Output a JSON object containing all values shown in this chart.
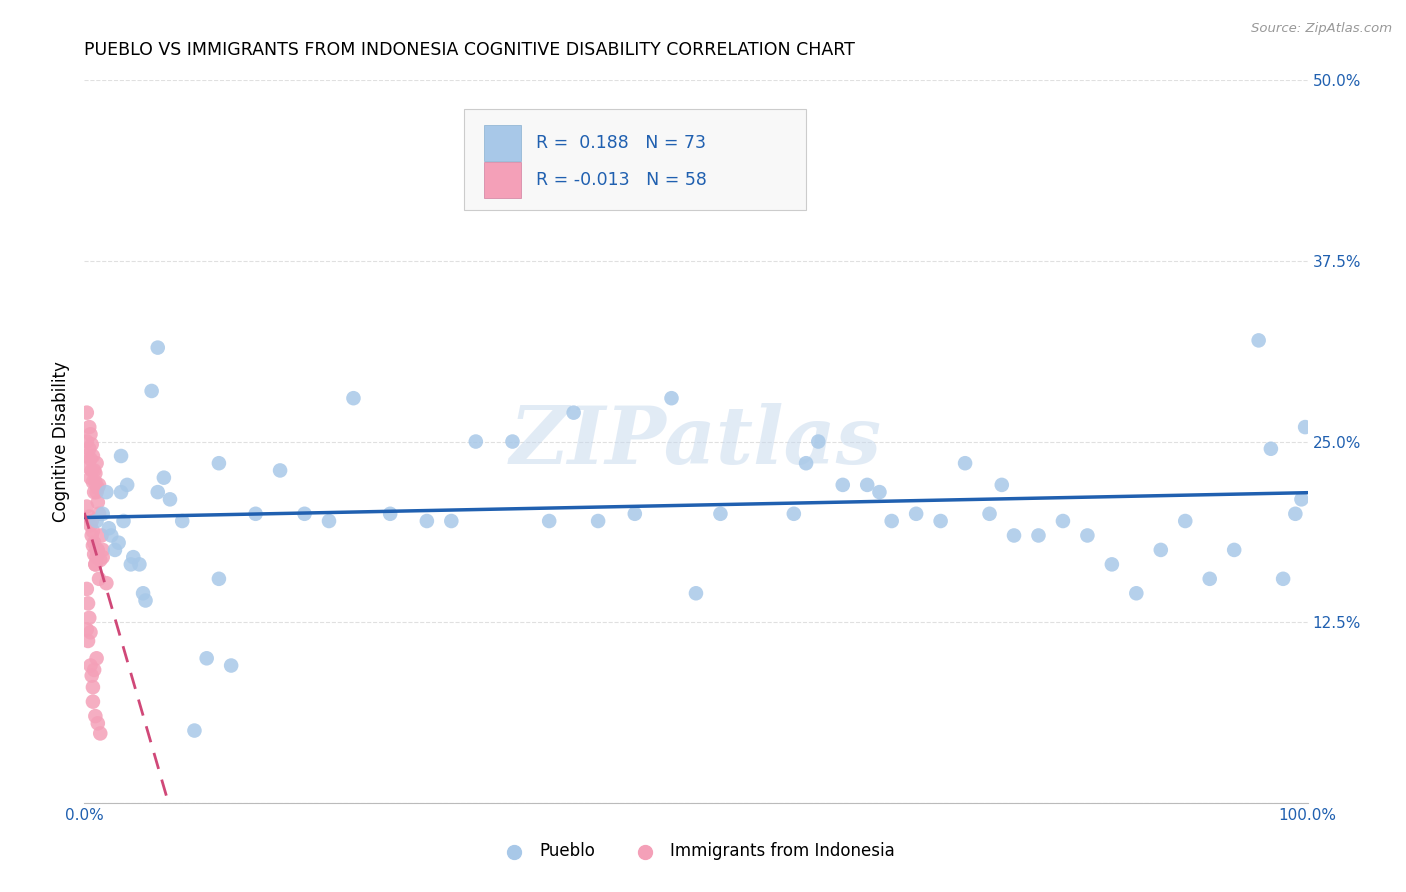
{
  "title": "PUEBLO VS IMMIGRANTS FROM INDONESIA COGNITIVE DISABILITY CORRELATION CHART",
  "source": "Source: ZipAtlas.com",
  "ylabel": "Cognitive Disability",
  "xlim": [
    0,
    1.0
  ],
  "ylim": [
    0,
    0.5
  ],
  "yticks": [
    0.0,
    0.125,
    0.25,
    0.375,
    0.5
  ],
  "ytick_labels": [
    "",
    "12.5%",
    "25.0%",
    "37.5%",
    "50.0%"
  ],
  "xticks": [
    0.0,
    0.1,
    0.2,
    0.3,
    0.4,
    0.5,
    0.6,
    0.7,
    0.8,
    0.9,
    1.0
  ],
  "xtick_labels": [
    "0.0%",
    "",
    "",
    "",
    "",
    "",
    "",
    "",
    "",
    "",
    "100.0%"
  ],
  "pueblo_R": 0.188,
  "pueblo_N": 73,
  "indonesia_R": -0.013,
  "indonesia_N": 58,
  "pueblo_color": "#a8c8e8",
  "indonesia_color": "#f4a0b8",
  "pueblo_line_color": "#2060b0",
  "indonesia_line_color": "#d04878",
  "pueblo_x": [
    0.01,
    0.015,
    0.018,
    0.02,
    0.022,
    0.025,
    0.028,
    0.03,
    0.032,
    0.035,
    0.038,
    0.04,
    0.045,
    0.048,
    0.05,
    0.055,
    0.06,
    0.065,
    0.07,
    0.08,
    0.09,
    0.1,
    0.11,
    0.12,
    0.14,
    0.16,
    0.18,
    0.2,
    0.22,
    0.25,
    0.28,
    0.3,
    0.32,
    0.35,
    0.38,
    0.4,
    0.42,
    0.45,
    0.48,
    0.5,
    0.52,
    0.55,
    0.58,
    0.6,
    0.62,
    0.64,
    0.65,
    0.66,
    0.68,
    0.7,
    0.72,
    0.74,
    0.75,
    0.76,
    0.78,
    0.8,
    0.82,
    0.84,
    0.86,
    0.88,
    0.9,
    0.92,
    0.94,
    0.96,
    0.97,
    0.98,
    0.99,
    0.995,
    0.998,
    0.03,
    0.06,
    0.11,
    0.59
  ],
  "pueblo_y": [
    0.195,
    0.2,
    0.215,
    0.19,
    0.185,
    0.175,
    0.18,
    0.215,
    0.195,
    0.22,
    0.165,
    0.17,
    0.165,
    0.145,
    0.14,
    0.285,
    0.315,
    0.225,
    0.21,
    0.195,
    0.05,
    0.1,
    0.155,
    0.095,
    0.2,
    0.23,
    0.2,
    0.195,
    0.28,
    0.2,
    0.195,
    0.195,
    0.25,
    0.25,
    0.195,
    0.27,
    0.195,
    0.2,
    0.28,
    0.145,
    0.2,
    0.435,
    0.2,
    0.25,
    0.22,
    0.22,
    0.215,
    0.195,
    0.2,
    0.195,
    0.235,
    0.2,
    0.22,
    0.185,
    0.185,
    0.195,
    0.185,
    0.165,
    0.145,
    0.175,
    0.195,
    0.155,
    0.175,
    0.32,
    0.245,
    0.155,
    0.2,
    0.21,
    0.26,
    0.24,
    0.215,
    0.235,
    0.235
  ],
  "indonesia_x": [
    0.002,
    0.004,
    0.005,
    0.006,
    0.007,
    0.008,
    0.009,
    0.01,
    0.011,
    0.012,
    0.002,
    0.004,
    0.005,
    0.006,
    0.007,
    0.008,
    0.009,
    0.01,
    0.011,
    0.012,
    0.002,
    0.004,
    0.005,
    0.006,
    0.007,
    0.008,
    0.009,
    0.01,
    0.011,
    0.013,
    0.002,
    0.004,
    0.005,
    0.006,
    0.007,
    0.008,
    0.009,
    0.01,
    0.014,
    0.015,
    0.002,
    0.003,
    0.005,
    0.006,
    0.007,
    0.008,
    0.01,
    0.012,
    0.015,
    0.018,
    0.002,
    0.003,
    0.004,
    0.005,
    0.007,
    0.009,
    0.011,
    0.013
  ],
  "indonesia_y": [
    0.25,
    0.245,
    0.238,
    0.23,
    0.222,
    0.215,
    0.228,
    0.235,
    0.218,
    0.22,
    0.27,
    0.26,
    0.255,
    0.248,
    0.24,
    0.23,
    0.222,
    0.215,
    0.208,
    0.2,
    0.205,
    0.198,
    0.192,
    0.185,
    0.178,
    0.172,
    0.165,
    0.17,
    0.175,
    0.168,
    0.24,
    0.232,
    0.225,
    0.195,
    0.188,
    0.18,
    0.165,
    0.175,
    0.185,
    0.17,
    0.12,
    0.112,
    0.095,
    0.088,
    0.08,
    0.092,
    0.1,
    0.155,
    0.175,
    0.152,
    0.148,
    0.138,
    0.128,
    0.118,
    0.07,
    0.06,
    0.055,
    0.048
  ],
  "background_color": "#ffffff",
  "grid_color": "#e0e0e0",
  "watermark": "ZIPatlas",
  "legend_pueblo": "Pueblo",
  "legend_indonesia": "Immigrants from Indonesia",
  "title_fontsize": 12.5,
  "tick_fontsize": 11,
  "axis_label_fontsize": 12
}
